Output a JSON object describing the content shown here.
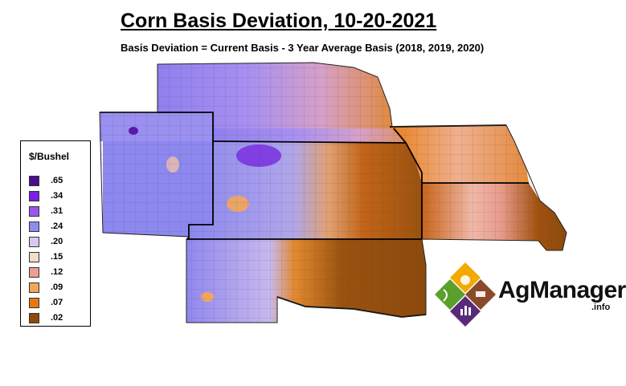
{
  "title": "Corn Basis Deviation, 10-20-2021",
  "subtitle": "Basis Deviation = Current Basis - 3 Year Average Basis (2018, 2019, 2020)",
  "legend": {
    "title": "$/Bushel",
    "items": [
      {
        "label": ".65",
        "color": "#4b0f8c"
      },
      {
        "label": ".34",
        "color": "#7a1fe6"
      },
      {
        "label": ".31",
        "color": "#9a55ee"
      },
      {
        "label": ".24",
        "color": "#8f8cf0"
      },
      {
        "label": ".20",
        "color": "#d8c8f0"
      },
      {
        "label": ".15",
        "color": "#f2dccc"
      },
      {
        "label": ".12",
        "color": "#ec9e92"
      },
      {
        "label": ".09",
        "color": "#f2a65a"
      },
      {
        "label": ".07",
        "color": "#e8780e"
      },
      {
        "label": ".02",
        "color": "#8c4a0c"
      }
    ]
  },
  "logo": {
    "name": "AgManager",
    "suffix": ".info"
  }
}
